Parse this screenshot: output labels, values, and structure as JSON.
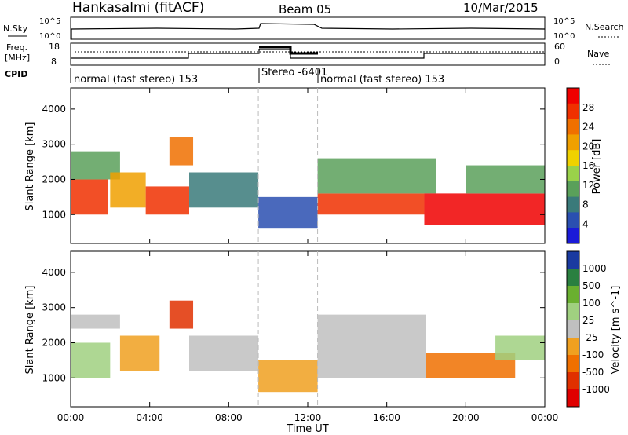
{
  "header": {
    "station": "Hankasalmi (fitACF)",
    "beam": "Beam 05",
    "date": "10/Mar/2015"
  },
  "top_panel": {
    "left_labels": {
      "nsky": "N.Sky",
      "freq_line1": "Freq.",
      "freq_line2": "[MHz]",
      "cpid": "CPID"
    },
    "right_labels": {
      "nsearch": "N.Search",
      "nave": "Nave"
    },
    "noise_ticks": [
      "10^5",
      "10^0"
    ],
    "noise_ticks_right": [
      "10^5",
      "10^0"
    ],
    "freq_ticks": [
      "18",
      "8"
    ],
    "nave_ticks": [
      "60",
      "0"
    ],
    "cpid_segments": [
      {
        "label": "normal (fast stereo) 153",
        "start_hour": 0,
        "end_hour": 9.5
      },
      {
        "label": "Stereo -6401",
        "start_hour": 9.5,
        "end_hour": 12.5
      },
      {
        "label": "normal (fast stereo) 153",
        "start_hour": 12.5,
        "end_hour": 24
      }
    ]
  },
  "colors": {
    "power_scale": [
      "#1a1ad8",
      "#2a4fb0",
      "#3a7a7a",
      "#5aa05a",
      "#9ad24a",
      "#f0d200",
      "#f0a000",
      "#f07000",
      "#f03000",
      "#f00000"
    ],
    "velocity_scale": [
      "#1a3aa0",
      "#2a8040",
      "#6ab030",
      "#a0d080",
      "#c0c0c0",
      "#f0a020",
      "#f07000",
      "#e03000",
      "#e00000"
    ]
  },
  "chart_data": [
    {
      "type": "heatmap",
      "title": "",
      "xlabel": "",
      "ylabel": "Slant Range [km]",
      "x_ticks": [
        "00:00",
        "04:00",
        "08:00",
        "12:00",
        "16:00",
        "20:00",
        "00:00"
      ],
      "y_ticks": [
        "1000",
        "2000",
        "3000",
        "4000"
      ],
      "xlim": [
        0,
        24
      ],
      "ylim": [
        180,
        4600
      ],
      "colorbar": {
        "label": "Power [dB]",
        "ticks": [
          "28",
          "24",
          "20",
          "16",
          "12",
          "8",
          "4"
        ],
        "range": [
          0,
          30
        ]
      },
      "regions": [
        {
          "start_hour": 0.0,
          "end_hour": 1.9,
          "range_min": 1000,
          "range_max": 2000,
          "value": 24
        },
        {
          "start_hour": 0.0,
          "end_hour": 2.5,
          "range_min": 2000,
          "range_max": 2800,
          "value": 9
        },
        {
          "start_hour": 2.0,
          "end_hour": 3.8,
          "range_min": 1200,
          "range_max": 2200,
          "value": 20
        },
        {
          "start_hour": 3.8,
          "end_hour": 6.0,
          "range_min": 1000,
          "range_max": 1800,
          "value": 26
        },
        {
          "start_hour": 5.0,
          "end_hour": 6.2,
          "range_min": 2400,
          "range_max": 3200,
          "value": 22
        },
        {
          "start_hour": 6.0,
          "end_hour": 9.5,
          "range_min": 1200,
          "range_max": 2200,
          "value": 8
        },
        {
          "start_hour": 9.5,
          "end_hour": 12.5,
          "range_min": 600,
          "range_max": 1500,
          "value": 4
        },
        {
          "start_hour": 12.5,
          "end_hour": 17.9,
          "range_min": 1000,
          "range_max": 1600,
          "value": 24
        },
        {
          "start_hour": 12.5,
          "end_hour": 18.5,
          "range_min": 1600,
          "range_max": 2600,
          "value": 9
        },
        {
          "start_hour": 17.9,
          "end_hour": 24.0,
          "range_min": 700,
          "range_max": 1600,
          "value": 28
        },
        {
          "start_hour": 20.0,
          "end_hour": 24.0,
          "range_min": 1600,
          "range_max": 2400,
          "value": 10
        }
      ]
    },
    {
      "type": "heatmap",
      "title": "",
      "xlabel": "Time UT",
      "ylabel": "Slant Range [km]",
      "x_ticks": [
        "00:00",
        "04:00",
        "08:00",
        "12:00",
        "16:00",
        "20:00",
        "00:00"
      ],
      "y_ticks": [
        "1000",
        "2000",
        "3000",
        "4000"
      ],
      "xlim": [
        0,
        24
      ],
      "ylim": [
        180,
        4600
      ],
      "colorbar": {
        "label": "Velocity [m s^-1]",
        "ticks": [
          "1000",
          "500",
          "100",
          "25",
          "-25",
          "-100",
          "-500",
          "-1000"
        ],
        "range": [
          -1200,
          1200
        ]
      },
      "regions": [
        {
          "start_hour": 0.0,
          "end_hour": 2.0,
          "range_min": 1000,
          "range_max": 2000,
          "value": 300
        },
        {
          "start_hour": 0.0,
          "end_hour": 2.5,
          "range_min": 2400,
          "range_max": 2800,
          "value": 0
        },
        {
          "start_hour": 2.5,
          "end_hour": 4.5,
          "range_min": 1200,
          "range_max": 2200,
          "value": -300
        },
        {
          "start_hour": 5.0,
          "end_hour": 6.2,
          "range_min": 2400,
          "range_max": 3200,
          "value": -800
        },
        {
          "start_hour": 6.0,
          "end_hour": 9.5,
          "range_min": 1200,
          "range_max": 2200,
          "value": 0
        },
        {
          "start_hour": 9.5,
          "end_hour": 12.5,
          "range_min": 600,
          "range_max": 1500,
          "value": -200
        },
        {
          "start_hour": 12.5,
          "end_hour": 18.0,
          "range_min": 1000,
          "range_max": 2800,
          "value": 0
        },
        {
          "start_hour": 18.0,
          "end_hour": 22.5,
          "range_min": 1000,
          "range_max": 1700,
          "value": -400
        },
        {
          "start_hour": 21.5,
          "end_hour": 24.0,
          "range_min": 1500,
          "range_max": 2200,
          "value": 400
        }
      ]
    }
  ]
}
